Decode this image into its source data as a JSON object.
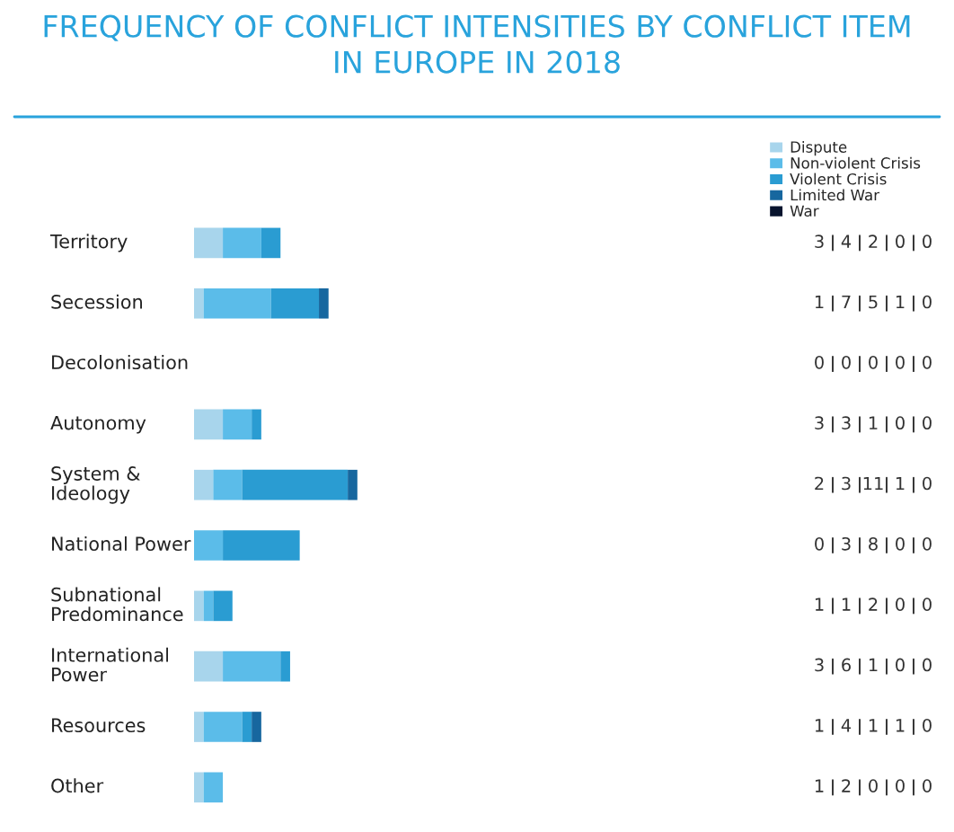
{
  "chart_data": {
    "type": "bar",
    "orientation": "horizontal",
    "stacked": true,
    "data_labels": true,
    "legend": "top right",
    "grid": false,
    "title": "FREQUENCY OF CONFLICT INTENSITIES BY CONFLICT ITEM\nIN EUROPE IN 2018",
    "categories": [
      "Territory",
      "Secession",
      "Decolonisation",
      "Autonomy",
      "System &\nIdeology",
      "National Power",
      "Subnational\nPredominance",
      "International\nPower",
      "Resources",
      "Other"
    ],
    "series": [
      {
        "name": "Dispute",
        "color": "#a8d5ec",
        "values": [
          3,
          1,
          0,
          3,
          2,
          0,
          1,
          3,
          1,
          1
        ]
      },
      {
        "name": "Non-violent Crisis",
        "color": "#5bbce9",
        "values": [
          4,
          7,
          0,
          3,
          3,
          3,
          1,
          6,
          4,
          2
        ]
      },
      {
        "name": "Violent Crisis",
        "color": "#2a9cd2",
        "values": [
          2,
          5,
          0,
          1,
          11,
          8,
          2,
          1,
          1,
          0
        ]
      },
      {
        "name": "Limited War",
        "color": "#17679f",
        "values": [
          0,
          1,
          0,
          0,
          1,
          0,
          0,
          0,
          1,
          0
        ]
      },
      {
        "name": "War",
        "color": "#08142e",
        "values": [
          0,
          0,
          0,
          0,
          0,
          0,
          0,
          0,
          0,
          0
        ]
      }
    ]
  }
}
